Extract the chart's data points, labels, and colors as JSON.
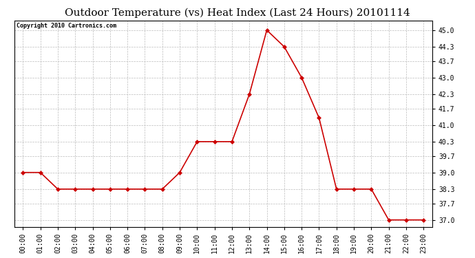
{
  "title": "Outdoor Temperature (vs) Heat Index (Last 24 Hours) 20101114",
  "copyright_text": "Copyright 2010 Cartronics.com",
  "x_labels": [
    "00:00",
    "01:00",
    "02:00",
    "03:00",
    "04:00",
    "05:00",
    "06:00",
    "07:00",
    "08:00",
    "09:00",
    "10:00",
    "11:00",
    "12:00",
    "13:00",
    "14:00",
    "15:00",
    "16:00",
    "17:00",
    "18:00",
    "19:00",
    "20:00",
    "21:00",
    "22:00",
    "23:00"
  ],
  "y_values": [
    39.0,
    39.0,
    38.3,
    38.3,
    38.3,
    38.3,
    38.3,
    38.3,
    38.3,
    39.0,
    40.3,
    40.3,
    40.3,
    42.3,
    45.0,
    44.3,
    43.0,
    41.3,
    38.3,
    38.3,
    38.3,
    37.0,
    37.0,
    37.0
  ],
  "line_color": "#cc0000",
  "marker": "D",
  "marker_size": 3,
  "ylim_min": 36.7,
  "ylim_max": 45.4,
  "yticks": [
    37.0,
    37.7,
    38.3,
    39.0,
    39.7,
    40.3,
    41.0,
    41.7,
    42.3,
    43.0,
    43.7,
    44.3,
    45.0
  ],
  "background_color": "#ffffff",
  "grid_color": "#bbbbbb",
  "title_fontsize": 11,
  "copyright_fontsize": 6,
  "tick_fontsize": 7,
  "line_width": 1.2,
  "fig_width": 6.9,
  "fig_height": 3.75,
  "dpi": 100
}
